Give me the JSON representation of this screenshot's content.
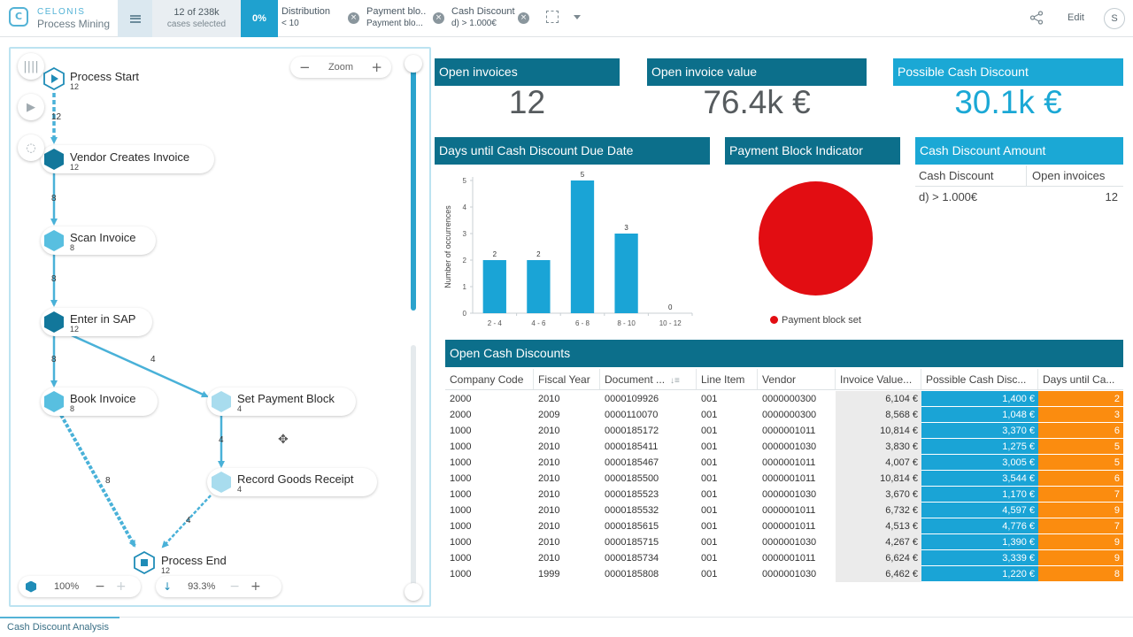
{
  "header": {
    "brand_top": "CELONIS",
    "brand_bottom": "Process Mining",
    "selection_count": "12 of 238k",
    "selection_label": "cases selected",
    "selection_percent": "0%",
    "filters": [
      {
        "title": "Distribution",
        "value": "< 10"
      },
      {
        "title": "Payment blo...",
        "value": "Payment blo..."
      },
      {
        "title": "Cash Discount",
        "value": "d) > 1.000€"
      }
    ],
    "edit_label": "Edit",
    "user_initial": "S"
  },
  "process": {
    "zoom_label": "Zoom",
    "nodes": [
      {
        "label": "Process Start",
        "count": "12"
      },
      {
        "label": "Vendor Creates Invoice",
        "count": "12"
      },
      {
        "label": "Scan Invoice",
        "count": "8"
      },
      {
        "label": "Enter in SAP",
        "count": "12"
      },
      {
        "label": "Book Invoice",
        "count": "8"
      },
      {
        "label": "Set Payment Block",
        "count": "4"
      },
      {
        "label": "Record Goods Receipt",
        "count": "4"
      },
      {
        "label": "Process End",
        "count": "12"
      }
    ],
    "edges": [
      "12",
      "8",
      "8",
      "8",
      "4",
      "4",
      "8",
      "4"
    ],
    "activities_percent": "100%",
    "connections_percent": "93.3%"
  },
  "kpis": {
    "open_invoices_title": "Open invoices",
    "open_invoices_value": "12",
    "open_invoice_value_title": "Open invoice value",
    "open_invoice_value_value": "76.4k €",
    "possible_cash_discount_title": "Possible Cash Discount",
    "possible_cash_discount_value": "30.1k €"
  },
  "chart_titles": {
    "days_until": "Days until Cash Discount Due Date",
    "payment_block": "Payment Block Indicator",
    "cash_discount_amount": "Cash Discount Amount"
  },
  "chart_data": [
    {
      "type": "bar",
      "title": "Days until Cash Discount Due Date",
      "categories": [
        "2 - 4",
        "4 - 6",
        "6 - 8",
        "8 - 10",
        "10 - 12"
      ],
      "values": [
        2,
        2,
        5,
        3,
        0
      ],
      "ylabel": "Number of occurrences",
      "ylim": [
        0,
        5
      ],
      "yticks": [
        "0",
        "1",
        "2",
        "3",
        "4",
        "5"
      ],
      "color": "#1aa4d6"
    },
    {
      "type": "pie",
      "title": "Payment Block Indicator",
      "categories": [
        "Payment block set"
      ],
      "values": [
        12
      ],
      "legend": "bottom",
      "color": "#e20d12"
    }
  ],
  "cash_discount_amount": {
    "headers": [
      "Cash Discount",
      "Open invoices"
    ],
    "rows": [
      [
        "d) > 1.000€",
        "12"
      ]
    ]
  },
  "open_cash_discounts": {
    "title": "Open Cash Discounts",
    "headers": [
      "Company Code",
      "Fiscal Year",
      "Document ...",
      "Line Item",
      "Vendor",
      "Invoice Value...",
      "Possible Cash Disc...",
      "Days until Ca..."
    ],
    "rows": [
      [
        "2000",
        "2010",
        "0000109926",
        "001",
        "0000000300",
        "6,104 €",
        "1,400 €",
        "2"
      ],
      [
        "2000",
        "2009",
        "0000110070",
        "001",
        "0000000300",
        "8,568 €",
        "1,048 €",
        "3"
      ],
      [
        "1000",
        "2010",
        "0000185172",
        "001",
        "0000001011",
        "10,814 €",
        "3,370 €",
        "6"
      ],
      [
        "1000",
        "2010",
        "0000185411",
        "001",
        "0000001030",
        "3,830 €",
        "1,275 €",
        "5"
      ],
      [
        "1000",
        "2010",
        "0000185467",
        "001",
        "0000001011",
        "4,007 €",
        "3,005 €",
        "5"
      ],
      [
        "1000",
        "2010",
        "0000185500",
        "001",
        "0000001011",
        "10,814 €",
        "3,544 €",
        "6"
      ],
      [
        "1000",
        "2010",
        "0000185523",
        "001",
        "0000001030",
        "3,670 €",
        "1,170 €",
        "7"
      ],
      [
        "1000",
        "2010",
        "0000185532",
        "001",
        "0000001011",
        "6,732 €",
        "4,597 €",
        "9"
      ],
      [
        "1000",
        "2010",
        "0000185615",
        "001",
        "0000001011",
        "4,513 €",
        "4,776 €",
        "7"
      ],
      [
        "1000",
        "2010",
        "0000185715",
        "001",
        "0000001030",
        "4,267 €",
        "1,390 €",
        "9"
      ],
      [
        "1000",
        "2010",
        "0000185734",
        "001",
        "0000001011",
        "6,624 €",
        "3,339 €",
        "9"
      ],
      [
        "1000",
        "1999",
        "0000185808",
        "001",
        "0000001030",
        "6,462 €",
        "1,220 €",
        "8"
      ]
    ]
  },
  "sheet_tab": "Cash Discount Analysis"
}
